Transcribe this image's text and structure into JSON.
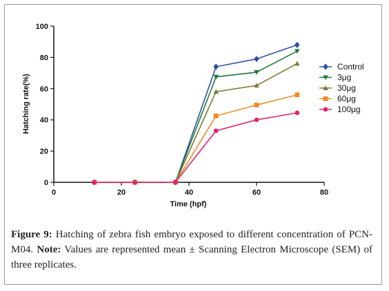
{
  "chart_data": {
    "type": "line",
    "xlabel": "Time (hpf)",
    "ylabel": "Hatching rate(%)",
    "xlim": [
      0,
      80
    ],
    "ylim": [
      0,
      100
    ],
    "x_ticks": [
      0,
      20,
      40,
      60,
      80
    ],
    "y_ticks": [
      0,
      20,
      40,
      60,
      80,
      100
    ],
    "x_tick_labels": [
      "0",
      "20",
      "40",
      "60",
      "80"
    ],
    "y_tick_labels": [
      "0",
      "20",
      "40",
      "60",
      "80",
      "100"
    ],
    "grid": false,
    "legend_position": "right",
    "x": [
      12,
      24,
      36,
      48,
      60,
      72
    ],
    "series": [
      {
        "name": "Control",
        "color": "#2b4fa8",
        "marker": "diamond",
        "values": [
          0,
          0,
          0,
          74,
          79,
          88
        ]
      },
      {
        "name": "3μg",
        "color": "#1f7a3c",
        "marker": "triangle-down",
        "values": [
          0,
          0,
          0,
          67.5,
          70.5,
          84
        ]
      },
      {
        "name": "30μg",
        "color": "#7a7a32",
        "marker": "triangle-up",
        "values": [
          0,
          0,
          0,
          58,
          62,
          76
        ]
      },
      {
        "name": "60μg",
        "color": "#f08a24",
        "marker": "square",
        "values": [
          0,
          0,
          0,
          42.5,
          49.5,
          56
        ]
      },
      {
        "name": "100μg",
        "color": "#e0246e",
        "marker": "circle",
        "values": [
          0,
          0,
          0,
          33,
          40,
          44.5
        ]
      }
    ]
  },
  "caption": {
    "figure_label": "Figure 9:",
    "figure_text": " Hatching of zebra fish embryo exposed to different concentration of PCN-M04.",
    "note_label": "Note:",
    "note_text": " Values are represented mean ± Scanning Electron Microscope (SEM) of three replicates."
  }
}
